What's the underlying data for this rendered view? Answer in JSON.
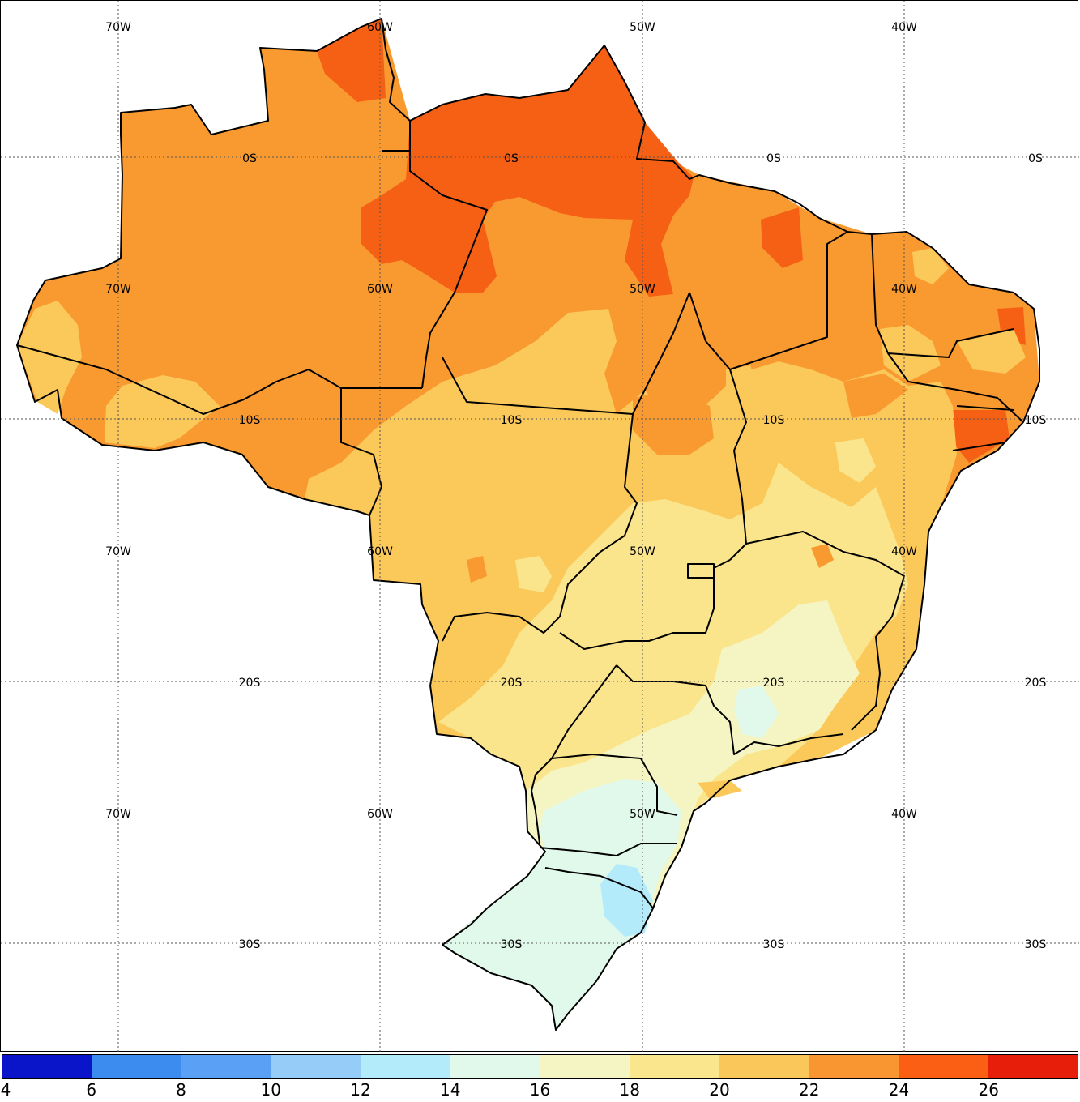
{
  "map": {
    "longitude_labels": [
      "70W",
      "60W",
      "50W",
      "40W"
    ],
    "latitude_labels": [
      "0S",
      "10S",
      "20S",
      "30S"
    ]
  },
  "colorbar": {
    "tick_labels": [
      "4",
      "6",
      "8",
      "10",
      "12",
      "14",
      "16",
      "18",
      "20",
      "22",
      "24",
      "26"
    ],
    "colors": [
      "#0a14c8",
      "#3c8cf0",
      "#5aa0f5",
      "#96cdf8",
      "#b4ebfa",
      "#e1f9eb",
      "#f5f5c3",
      "#fae68c",
      "#fac85a",
      "#fa9632",
      "#fa5f14",
      "#e61e0a"
    ]
  },
  "fill_colors": {
    "very_hot": "#f56014",
    "hot": "#f99a30",
    "warm": "#fbc85a",
    "mild": "#fbe58c",
    "cool": "#f5f5c3",
    "cold": "#e1f9eb",
    "colder": "#b4ebfa"
  }
}
